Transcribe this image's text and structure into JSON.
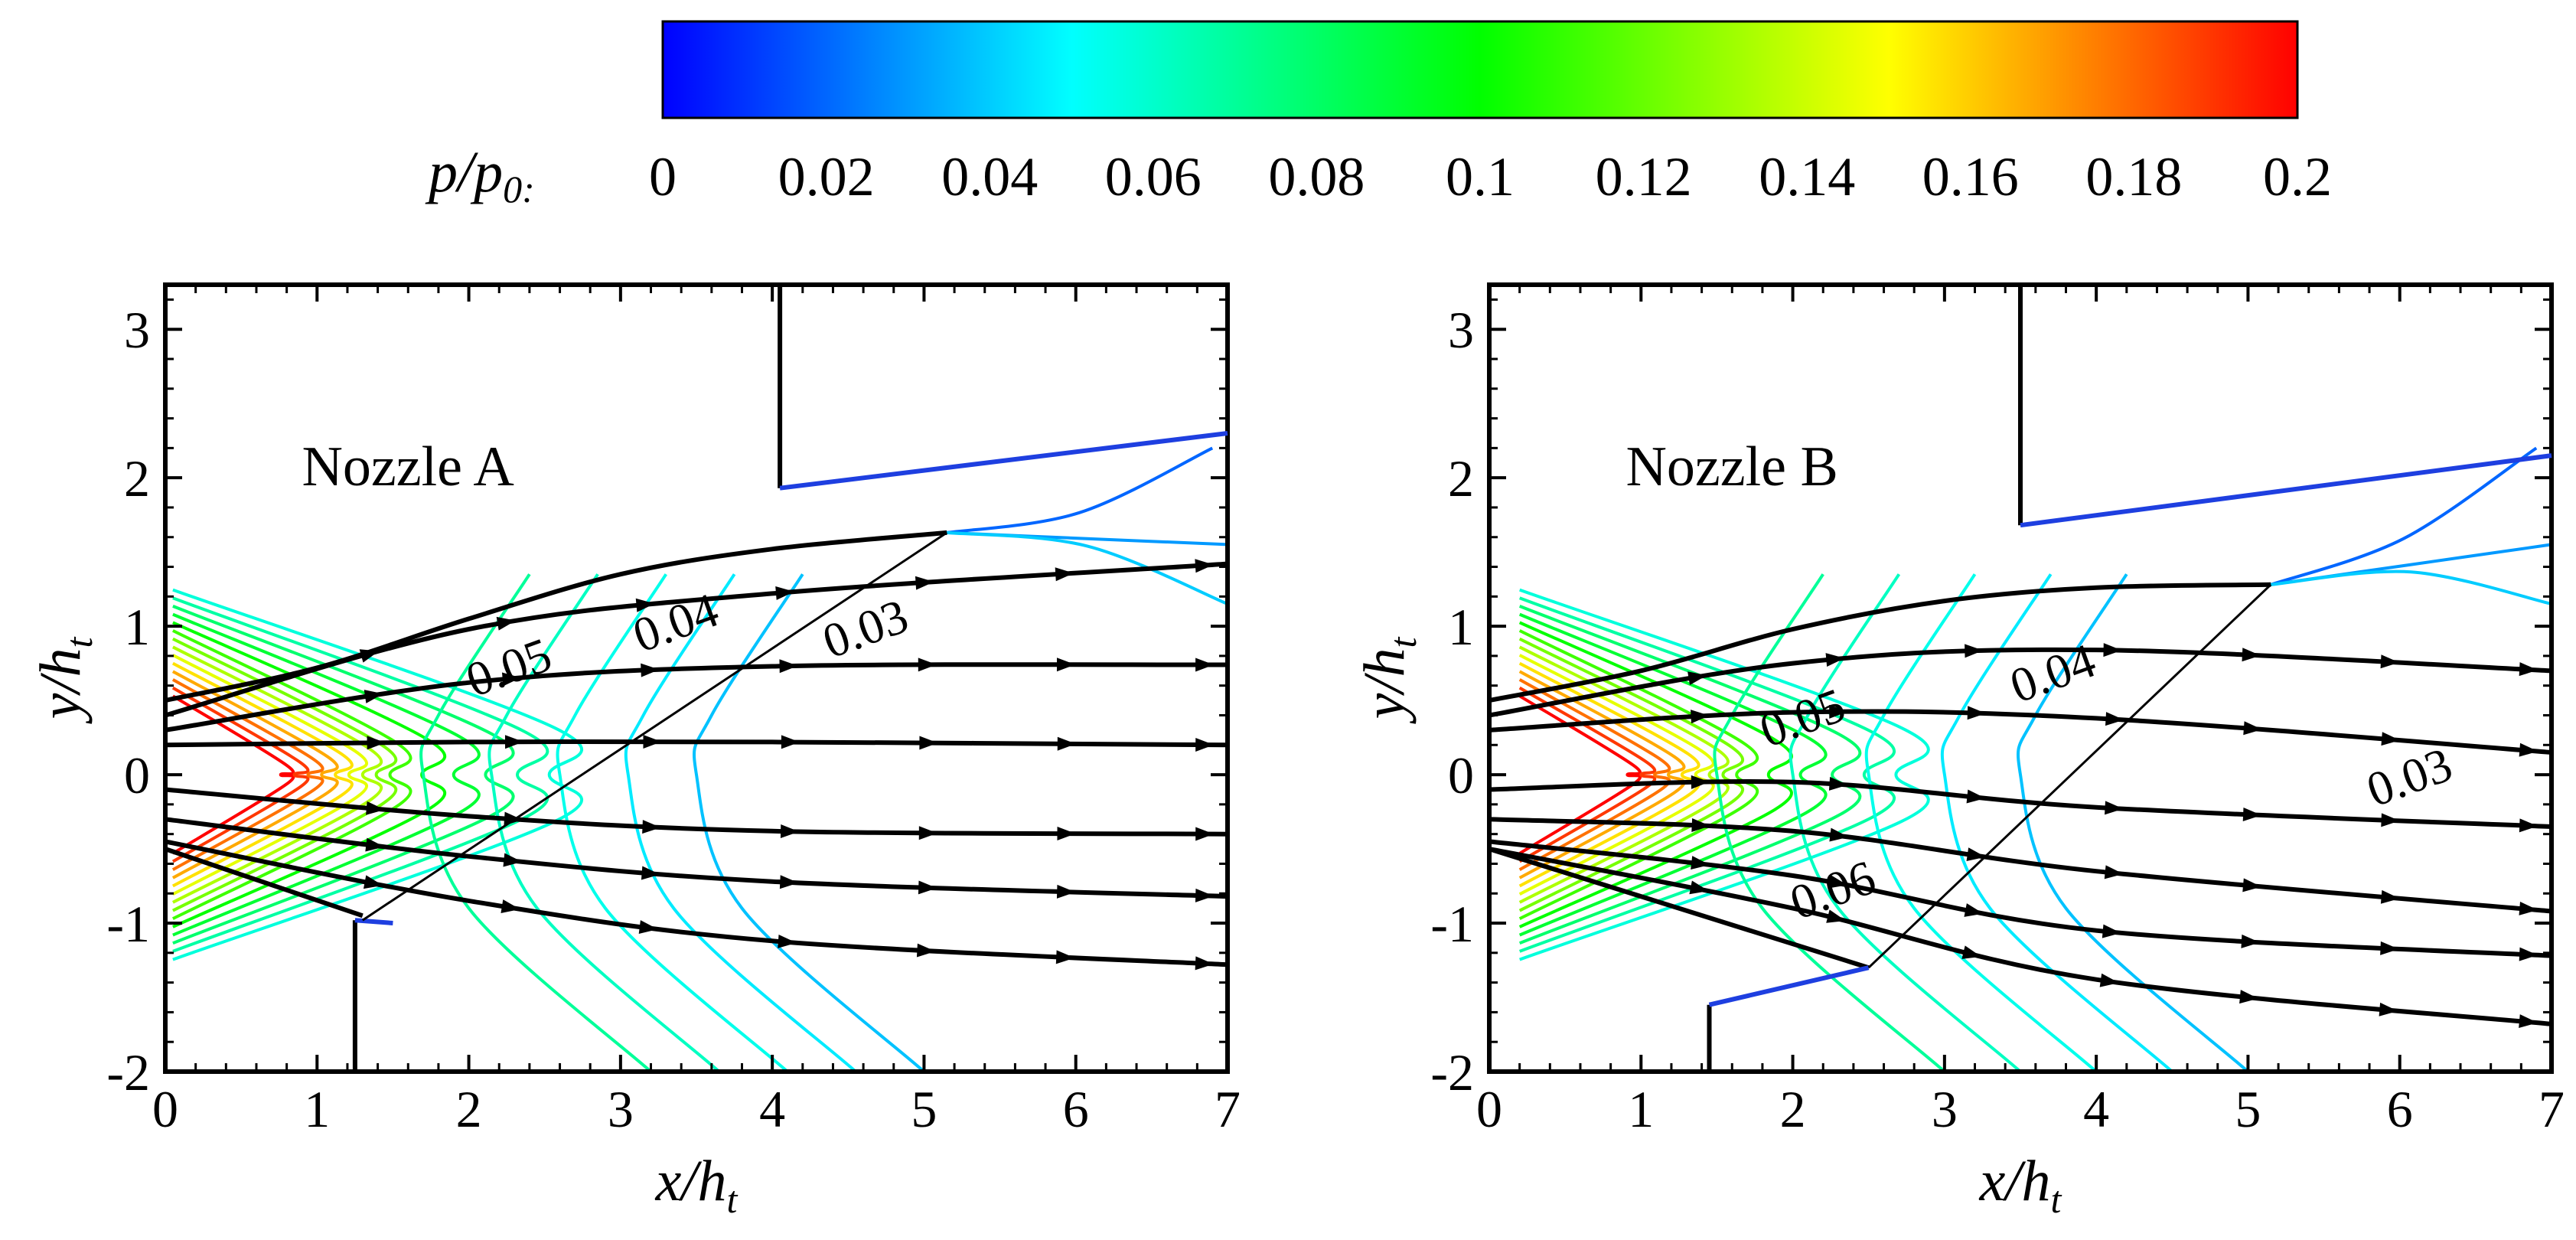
{
  "colorbar": {
    "title": "p/p",
    "title_sub": "0:",
    "min": 0,
    "max": 0.2,
    "ticks": [
      "0",
      "0.02",
      "0.04",
      "0.06",
      "0.08",
      "0.1",
      "0.12",
      "0.14",
      "0.16",
      "0.18",
      "0.2"
    ],
    "stops": [
      "#0000ff",
      "#0080ff",
      "#00ffff",
      "#00ff80",
      "#00ff00",
      "#80ff00",
      "#ffff00",
      "#ff8000",
      "#ff0000"
    ]
  },
  "chart_data": [
    {
      "type": "contour",
      "title": "Nozzle A",
      "xlabel": "x/h",
      "xlabel_sub": "t",
      "ylabel": "y/h",
      "ylabel_sub": "t",
      "xlim": [
        0,
        7
      ],
      "ylim": [
        -2,
        3.3
      ],
      "xticks": [
        "0",
        "1",
        "2",
        "3",
        "4",
        "5",
        "6",
        "7"
      ],
      "yticks": [
        "-2",
        "-1",
        "0",
        "1",
        "2",
        "3"
      ],
      "nozzle_wall_upper": [
        [
          0,
          0.5
        ],
        [
          1,
          0.72
        ],
        [
          2,
          1.05
        ],
        [
          3,
          1.35
        ],
        [
          4,
          1.52
        ],
        [
          5.15,
          1.63
        ]
      ],
      "nozzle_wall_lower": [
        [
          0,
          -0.5
        ],
        [
          1.3,
          -0.95
        ]
      ],
      "plate_upper": [
        [
          4.05,
          3.3
        ],
        [
          4.05,
          1.93
        ],
        [
          7,
          2.3
        ]
      ],
      "plate_lower": [
        [
          1.25,
          -2
        ],
        [
          1.25,
          -0.98
        ],
        [
          1.5,
          -1.0
        ]
      ],
      "characteristic_line": [
        [
          1.3,
          -0.98
        ],
        [
          5.15,
          1.63
        ]
      ],
      "streamlines": [
        [
          [
            0,
            0.4
          ],
          [
            2,
            0.98
          ],
          [
            4,
            1.22
          ],
          [
            7,
            1.42
          ]
        ],
        [
          [
            0,
            0.3
          ],
          [
            2,
            0.62
          ],
          [
            4,
            0.73
          ],
          [
            7,
            0.74
          ]
        ],
        [
          [
            0,
            0.2
          ],
          [
            2,
            0.22
          ],
          [
            4,
            0.22
          ],
          [
            7,
            0.2
          ]
        ],
        [
          [
            0,
            -0.1
          ],
          [
            2,
            -0.28
          ],
          [
            4,
            -0.38
          ],
          [
            7,
            -0.4
          ]
        ],
        [
          [
            0,
            -0.3
          ],
          [
            2,
            -0.55
          ],
          [
            4,
            -0.72
          ],
          [
            7,
            -0.82
          ]
        ],
        [
          [
            0,
            -0.45
          ],
          [
            2,
            -0.85
          ],
          [
            4,
            -1.12
          ],
          [
            7,
            -1.28
          ]
        ]
      ],
      "contour_labels": [
        {
          "text": "0.05",
          "x": 2.3,
          "y": 0.62
        },
        {
          "text": "0.04",
          "x": 3.4,
          "y": 0.92
        },
        {
          "text": "0.03",
          "x": 4.65,
          "y": 0.88
        }
      ]
    },
    {
      "type": "contour",
      "title": "Nozzle B",
      "xlabel": "x/h",
      "xlabel_sub": "t",
      "ylabel": "y/h",
      "ylabel_sub": "t",
      "xlim": [
        0,
        7
      ],
      "ylim": [
        -2,
        3.3
      ],
      "xticks": [
        "0",
        "1",
        "2",
        "3",
        "4",
        "5",
        "6",
        "7"
      ],
      "yticks": [
        "-2",
        "-1",
        "0",
        "1",
        "2",
        "3"
      ],
      "nozzle_wall_upper": [
        [
          0,
          0.5
        ],
        [
          1,
          0.7
        ],
        [
          2,
          0.98
        ],
        [
          3,
          1.17
        ],
        [
          4,
          1.26
        ],
        [
          5.15,
          1.28
        ]
      ],
      "nozzle_wall_lower": [
        [
          0,
          -0.5
        ],
        [
          2.5,
          -1.3
        ]
      ],
      "plate_upper": [
        [
          3.5,
          3.3
        ],
        [
          3.5,
          1.68
        ],
        [
          7,
          2.15
        ]
      ],
      "plate_lower": [
        [
          1.45,
          -2
        ],
        [
          1.45,
          -1.55
        ],
        [
          2.5,
          -1.3
        ]
      ],
      "characteristic_line": [
        [
          2.5,
          -1.3
        ],
        [
          5.15,
          1.28
        ]
      ],
      "streamlines": [
        [
          [
            0,
            0.4
          ],
          [
            2,
            0.75
          ],
          [
            4,
            0.84
          ],
          [
            7,
            0.7
          ]
        ],
        [
          [
            0,
            0.3
          ],
          [
            2,
            0.42
          ],
          [
            4,
            0.38
          ],
          [
            7,
            0.15
          ]
        ],
        [
          [
            0,
            -0.1
          ],
          [
            2,
            -0.05
          ],
          [
            4,
            -0.22
          ],
          [
            7,
            -0.35
          ]
        ],
        [
          [
            0,
            -0.3
          ],
          [
            2,
            -0.38
          ],
          [
            4,
            -0.65
          ],
          [
            7,
            -0.92
          ]
        ],
        [
          [
            0,
            -0.45
          ],
          [
            2,
            -0.68
          ],
          [
            4,
            -1.05
          ],
          [
            7,
            -1.22
          ]
        ],
        [
          [
            0,
            -0.5
          ],
          [
            2,
            -0.9
          ],
          [
            4,
            -1.38
          ],
          [
            7,
            -1.68
          ]
        ]
      ],
      "contour_labels": [
        {
          "text": "0.05",
          "x": 2.1,
          "y": 0.28
        },
        {
          "text": "0.04",
          "x": 3.75,
          "y": 0.58
        },
        {
          "text": "0.03",
          "x": 6.1,
          "y": -0.12
        },
        {
          "text": "0.06",
          "x": 2.3,
          "y": -0.88
        }
      ]
    }
  ]
}
